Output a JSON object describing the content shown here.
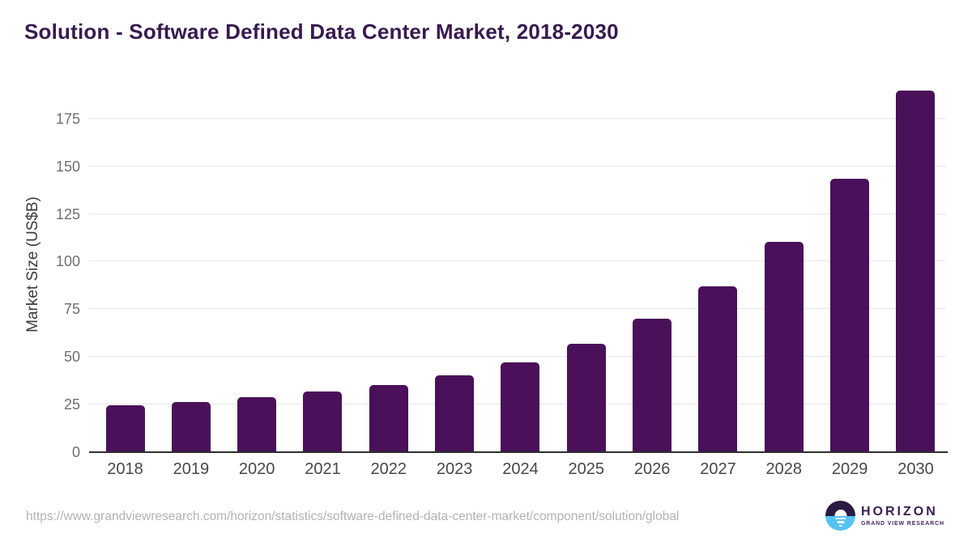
{
  "page": {
    "title": "Solution - Software Defined Data Center Market, 2018-2030",
    "source_url": "https://www.grandviewresearch.com/horizon/statistics/software-defined-data-center-market/component/solution/global"
  },
  "chart_data": {
    "type": "bar",
    "title": "Solution - Software Defined Data Center Market, 2018-2030",
    "categories": [
      "2018",
      "2019",
      "2020",
      "2021",
      "2022",
      "2023",
      "2024",
      "2025",
      "2026",
      "2027",
      "2028",
      "2029",
      "2030"
    ],
    "values": [
      24.6,
      26.5,
      28.7,
      31.7,
      35.3,
      40.5,
      47.0,
      56.9,
      70.0,
      86.9,
      110.3,
      143.4,
      189.9
    ],
    "unit": "US$B",
    "xlabel": "",
    "ylabel": "Market Size (US$B)",
    "yticks": [
      0,
      25,
      50,
      75,
      100,
      125,
      150,
      175
    ],
    "ylim": [
      0,
      197
    ],
    "grid": true,
    "legend": false,
    "bar_color": "#4a1059"
  },
  "branding": {
    "logo_title": "HORIZON",
    "logo_subtitle": "GRAND VIEW RESEARCH",
    "icon": "horizon-sunset-icon",
    "colors": {
      "title_text": "#381a4f",
      "logo_title_text": "#3b1c52",
      "logo_subtitle_text": "#45246a",
      "logo_dark": "#2b1a42",
      "logo_blue": "#55c3f2"
    }
  }
}
